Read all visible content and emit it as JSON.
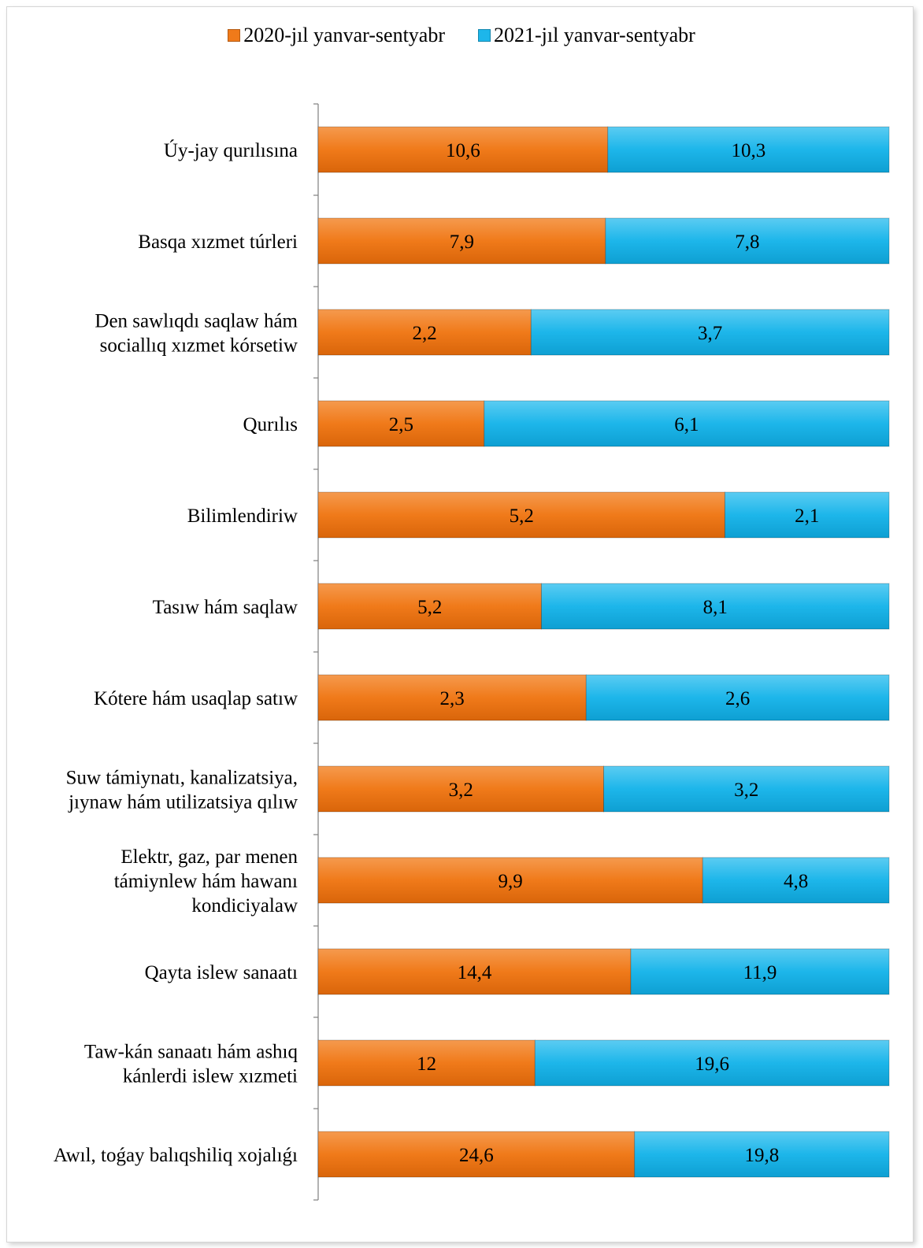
{
  "chart_data": {
    "type": "bar",
    "orientation": "horizontal",
    "stacked": "percent",
    "categories": [
      "Úy-jay qurılısına",
      "Basqa xızmet túrleri",
      "Den sawlıqdı saqlaw hám sociallıq xızmet kórsetiw",
      "Qurılıs",
      "Bilimlendiriw",
      "Tasıw hám saqlaw",
      "Kótere hám usaqlap satıw",
      "Suw támiynatı, kanalizatsiya, jıynaw hám utilizatsiya qılıw",
      "Elektr, gaz, par menen támiynlew hám hawanı kondiciyalaw",
      "Qayta islew sanaatı",
      "Taw-kán sanaatı hám ashıq kánlerdi islew xızmeti",
      "Awıl, toǵay balıqshiliq xojalıǵı"
    ],
    "category_lines": [
      [
        "Úy-jay qurılısına"
      ],
      [
        "Basqa xızmet túrleri"
      ],
      [
        "Den sawlıqdı saqlaw hám",
        "sociallıq xızmet kórsetiw"
      ],
      [
        "Qurılıs"
      ],
      [
        "Bilimlendiriw"
      ],
      [
        "Tasıw hám saqlaw"
      ],
      [
        "Kótere hám usaqlap satıw"
      ],
      [
        "Suw támiynatı, kanalizatsiya,",
        "jıynaw hám utilizatsiya qılıw"
      ],
      [
        "Elektr, gaz, par menen",
        "támiynlew hám hawanı",
        "kondiciyalaw"
      ],
      [
        "Qayta islew sanaatı"
      ],
      [
        "Taw-kán sanaatı hám ashıq",
        "kánlerdi islew xızmeti"
      ],
      [
        "Awıl, toǵay balıqshiliq xojalıǵı"
      ]
    ],
    "series": [
      {
        "name": "2020-jıl yanvar-sentyabr",
        "color": "#F07A1A",
        "values": [
          10.6,
          7.9,
          2.2,
          2.5,
          5.2,
          5.2,
          2.3,
          3.2,
          9.9,
          14.4,
          12,
          24.6
        ],
        "labels": [
          "10,6",
          "7,9",
          "2,2",
          "2,5",
          "5,2",
          "5,2",
          "2,3",
          "3,2",
          "9,9",
          "14,4",
          "12",
          "24,6"
        ]
      },
      {
        "name": "2021-jıl yanvar-sentyabr",
        "color": "#1DB6EA",
        "values": [
          10.3,
          7.8,
          3.7,
          6.1,
          2.1,
          8.1,
          2.6,
          3.2,
          4.8,
          11.9,
          19.6,
          19.8
        ],
        "labels": [
          "10,3",
          "7,8",
          "3,7",
          "6,1",
          "2,1",
          "8,1",
          "2,6",
          "3,2",
          "4,8",
          "11,9",
          "19,6",
          "19,8"
        ]
      }
    ],
    "legend_position": "top",
    "grid": false,
    "title": ""
  }
}
